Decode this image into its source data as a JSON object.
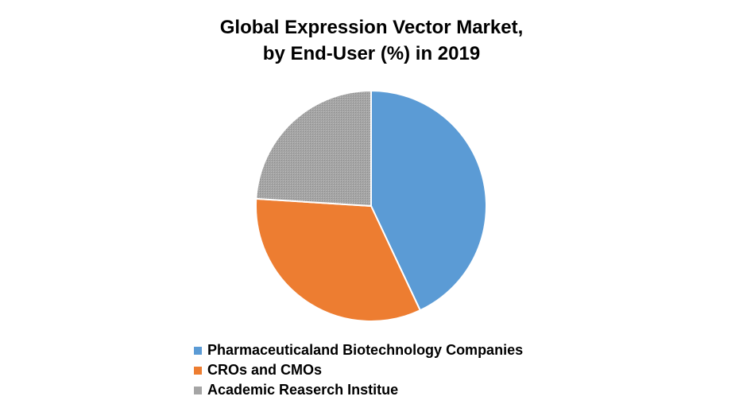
{
  "chart_data": {
    "type": "pie",
    "title_line1": "Global Expression Vector Market,",
    "title_line2": "by End-User (%) in 2019",
    "categories": [
      "Pharmaceuticaland Biotechnology Companies",
      "CROs and CMOs",
      "Academic Reaserch Institue"
    ],
    "values": [
      43,
      33,
      24
    ],
    "colors": [
      "#5b9bd5",
      "#ed7d31",
      "#a5a5a5"
    ],
    "legend_position": "bottom"
  }
}
